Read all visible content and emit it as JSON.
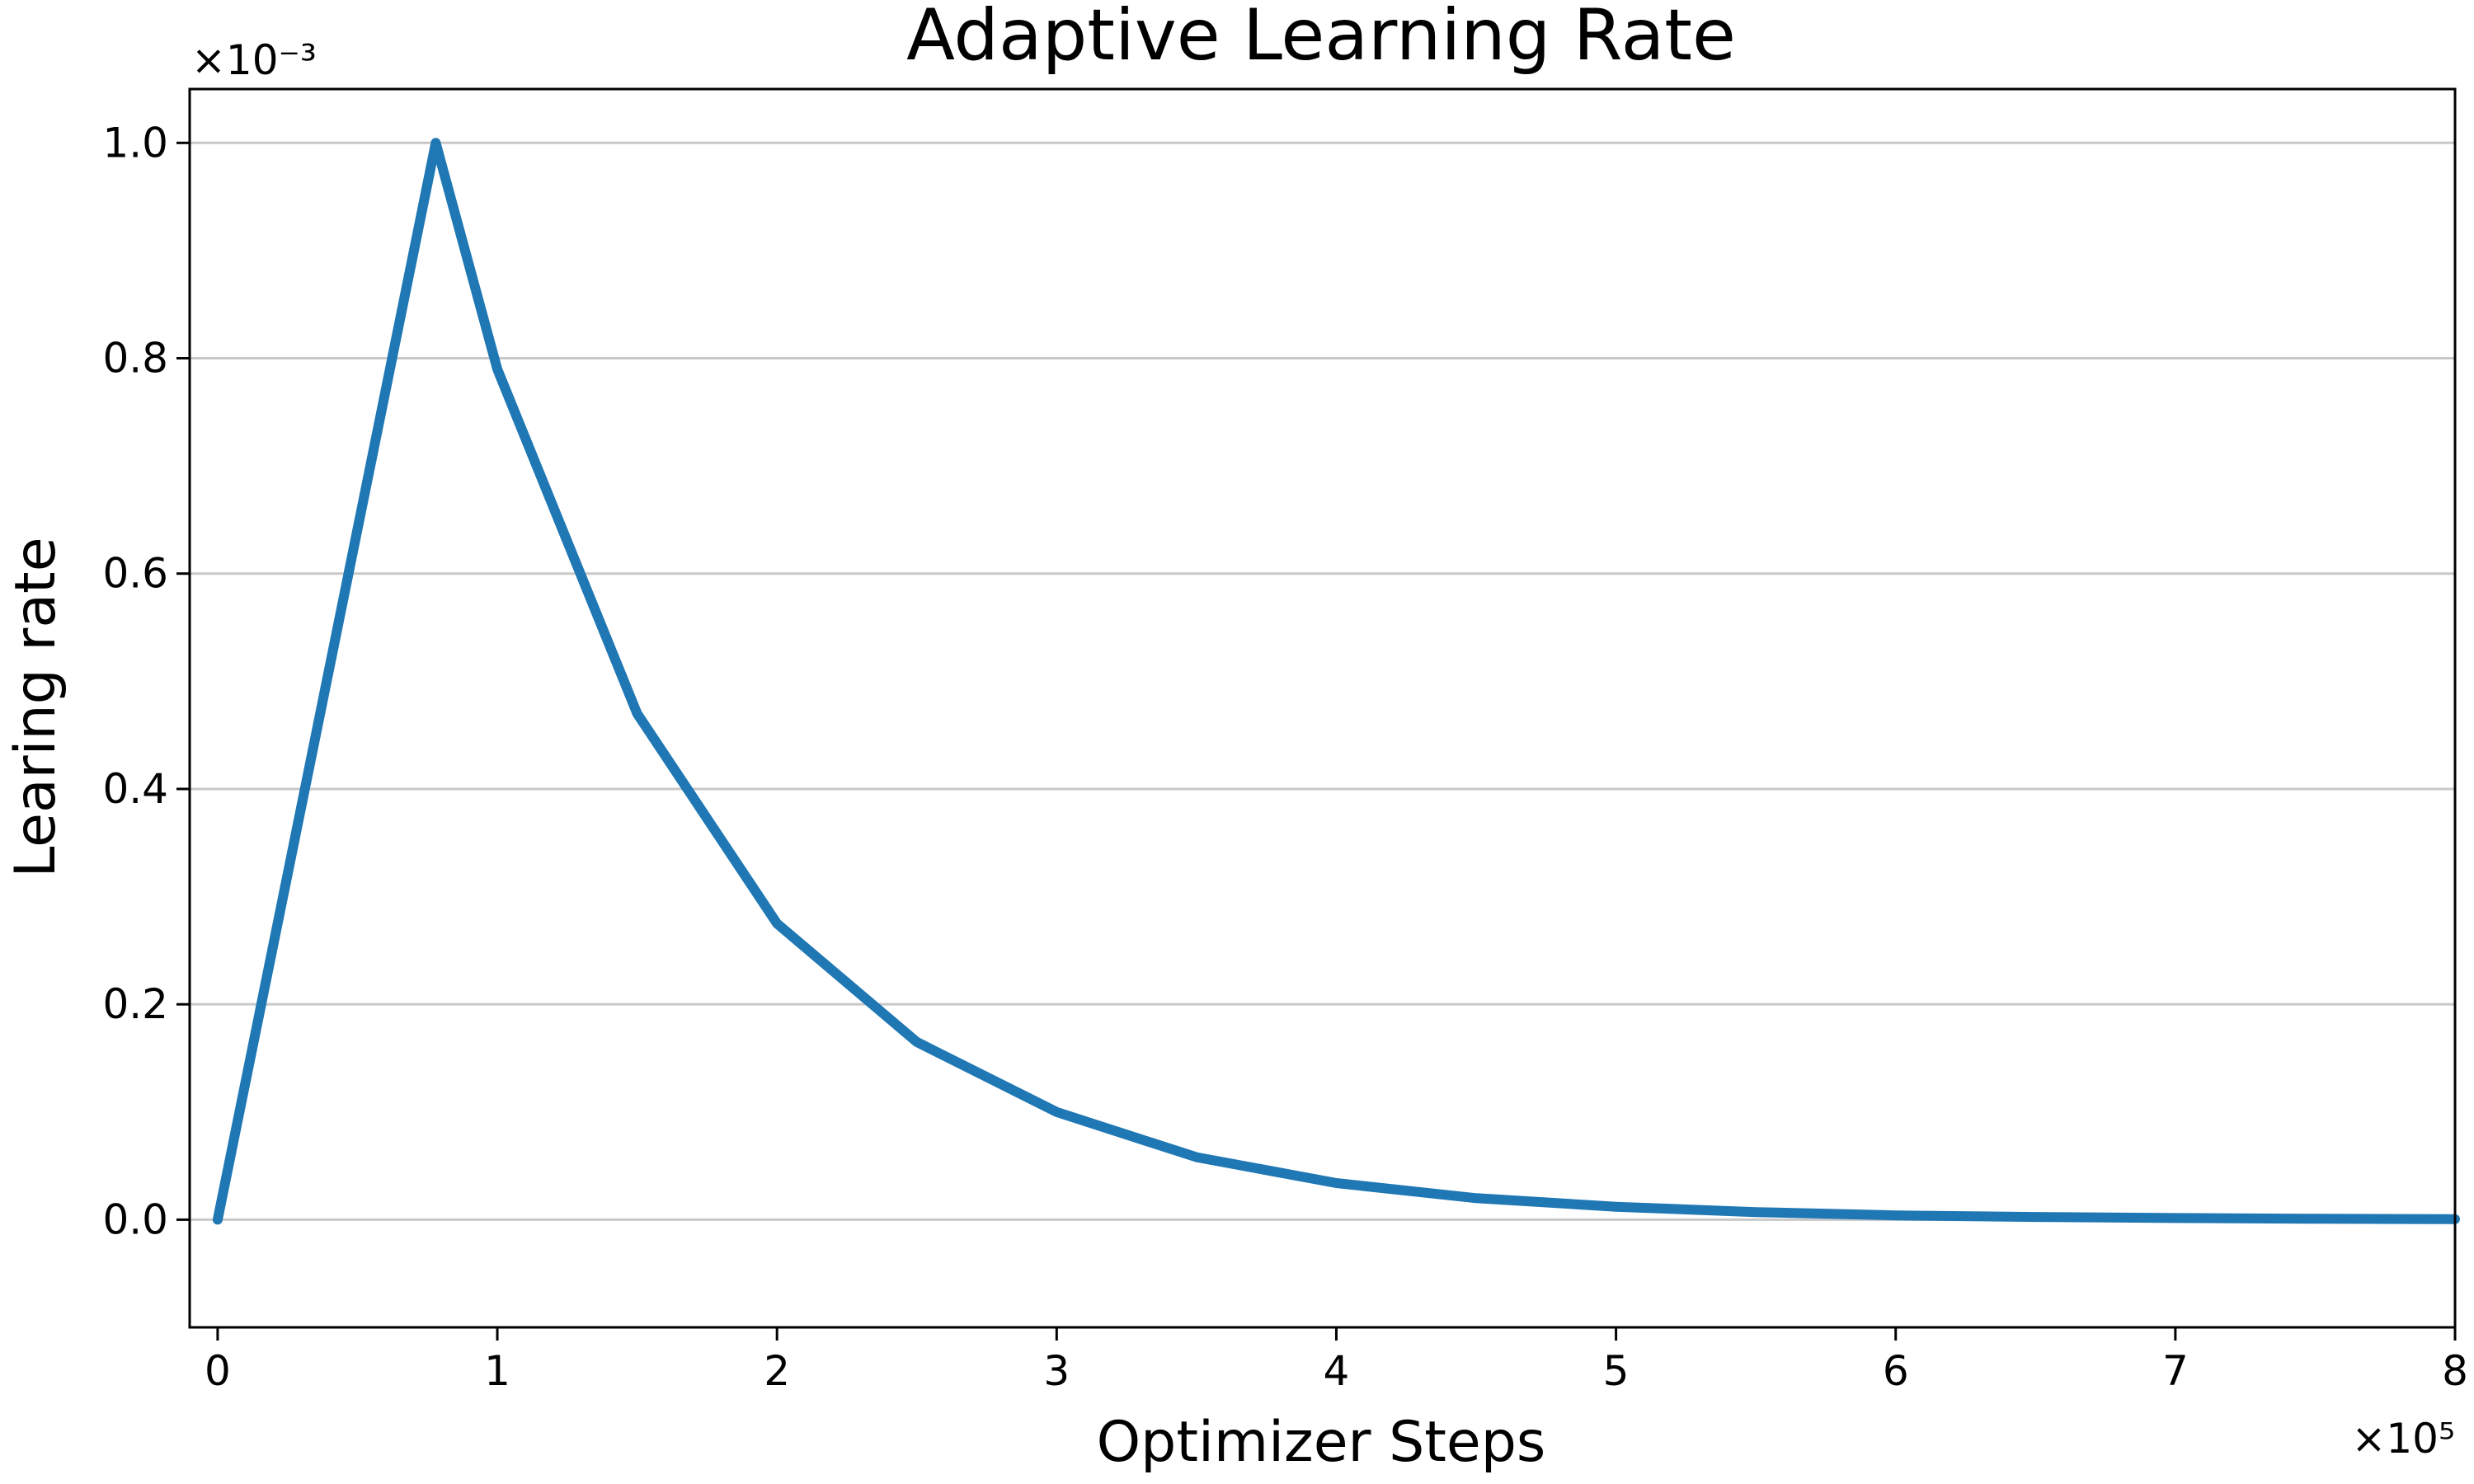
{
  "chart_data": {
    "type": "line",
    "title": "Adaptive Learning Rate",
    "xlabel": "Optimizer Steps",
    "ylabel": "Learing rate",
    "x_offset_label": "×10⁵",
    "y_offset_label": "×10⁻³",
    "xlim": [
      -0.1,
      8.0
    ],
    "ylim": [
      -0.1,
      1.05
    ],
    "xticks": [
      0,
      1,
      2,
      3,
      4,
      5,
      6,
      7,
      8
    ],
    "xtick_labels": [
      "0",
      "1",
      "2",
      "3",
      "4",
      "5",
      "6",
      "7",
      "8"
    ],
    "yticks": [
      0.0,
      0.2,
      0.4,
      0.6,
      0.8,
      1.0
    ],
    "ytick_labels": [
      "0.0",
      "0.2",
      "0.4",
      "0.6",
      "0.8",
      "1.0"
    ],
    "grid": "horizontal",
    "series": [
      {
        "color": "#1f77b4",
        "x": [
          0.0,
          0.78,
          1.0,
          1.5,
          2.0,
          2.5,
          3.0,
          3.5,
          4.0,
          4.5,
          5.0,
          5.5,
          6.0,
          6.5,
          7.0,
          7.5,
          8.0
        ],
        "y": [
          0.0,
          1.0,
          0.79,
          0.47,
          0.275,
          0.165,
          0.1,
          0.058,
          0.034,
          0.02,
          0.012,
          0.007,
          0.004,
          0.0025,
          0.0015,
          0.0008,
          0.0005
        ]
      }
    ]
  }
}
